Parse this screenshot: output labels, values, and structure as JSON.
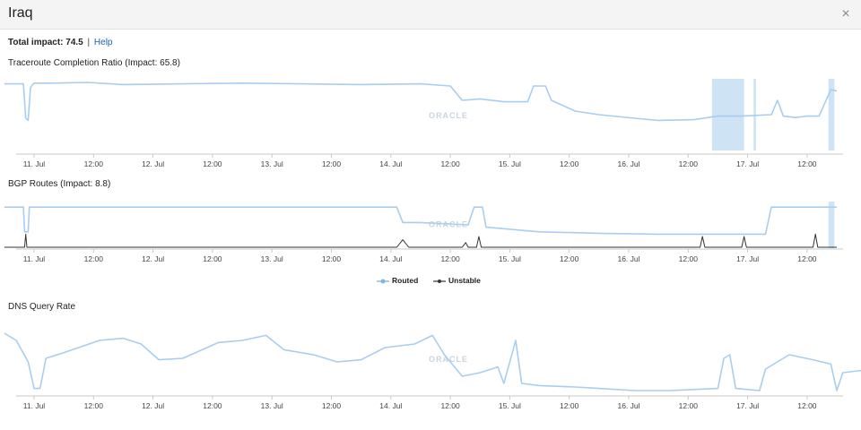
{
  "window": {
    "title": "Iraq",
    "close_glyph": "×"
  },
  "summary": {
    "impact_label": "Total impact: 74.5",
    "separator": "|",
    "help_label": "Help"
  },
  "colors": {
    "routed": "#a9cdef",
    "unstable": "#333333",
    "shade": "#c6def2",
    "axis": "#c8c8c8"
  },
  "icons": {
    "close": "close-icon"
  },
  "watermark": "ORACLE",
  "x_ticks": [
    "11. Jul",
    "12:00",
    "12. Jul",
    "12:00",
    "13. Jul",
    "12:00",
    "14. Jul",
    "12:00",
    "15. Jul",
    "12:00",
    "16. Jul",
    "12:00",
    "17. Jul",
    "12:00"
  ],
  "legend": {
    "routed_label": "Routed",
    "unstable_label": "Unstable"
  },
  "chart_data": [
    {
      "type": "line",
      "title": "Traceroute Completion Ratio (Impact: 65.8)",
      "x_start": "10. Jul 18:00",
      "x_end": "17. Jul 18:00",
      "categories_days": [
        0,
        0.25,
        0.5,
        0.75,
        1.0,
        1.25,
        1.5,
        1.75,
        2.0,
        2.25,
        2.5,
        2.75,
        3.0,
        3.25,
        3.5,
        3.75,
        4.0,
        4.25,
        4.5,
        4.75,
        5.0,
        5.25,
        5.5,
        5.75,
        6.0,
        6.25,
        6.5,
        6.75,
        7.0
      ],
      "series": [
        {
          "points": [
            [
              0,
              0.93
            ],
            [
              0.12,
              0.93
            ],
            [
              0.16,
              0.93
            ],
            [
              0.18,
              0.45
            ],
            [
              0.2,
              0.42
            ],
            [
              0.22,
              0.88
            ],
            [
              0.25,
              0.94
            ],
            [
              0.4,
              0.94
            ],
            [
              0.7,
              0.95
            ],
            [
              1.0,
              0.92
            ],
            [
              1.5,
              0.93
            ],
            [
              2.0,
              0.94
            ],
            [
              2.5,
              0.93
            ],
            [
              3.0,
              0.92
            ],
            [
              3.5,
              0.93
            ],
            [
              3.75,
              0.9
            ],
            [
              3.85,
              0.7
            ],
            [
              4.0,
              0.72
            ],
            [
              4.2,
              0.68
            ],
            [
              4.4,
              0.68
            ],
            [
              4.45,
              0.9
            ],
            [
              4.55,
              0.9
            ],
            [
              4.6,
              0.7
            ],
            [
              4.8,
              0.55
            ],
            [
              5.0,
              0.5
            ],
            [
              5.3,
              0.45
            ],
            [
              5.5,
              0.42
            ],
            [
              5.8,
              0.43
            ],
            [
              6.0,
              0.48
            ],
            [
              6.2,
              0.48
            ],
            [
              6.45,
              0.5
            ],
            [
              6.5,
              0.7
            ],
            [
              6.55,
              0.48
            ],
            [
              6.65,
              0.46
            ],
            [
              6.75,
              0.48
            ],
            [
              6.85,
              0.48
            ],
            [
              6.95,
              0.85
            ],
            [
              7.0,
              0.83
            ]
          ]
        }
      ],
      "shaded_ranges": [
        [
          5.95,
          6.22
        ],
        [
          6.3,
          6.32
        ],
        [
          6.93,
          6.98
        ]
      ]
    },
    {
      "type": "line",
      "title": "BGP Routes (Impact: 8.8)",
      "series": [
        {
          "name": "Routed",
          "points": [
            [
              0,
              0.88
            ],
            [
              0.16,
              0.88
            ],
            [
              0.17,
              0.35
            ],
            [
              0.2,
              0.35
            ],
            [
              0.21,
              0.88
            ],
            [
              3.3,
              0.88
            ],
            [
              3.35,
              0.55
            ],
            [
              3.5,
              0.55
            ],
            [
              3.9,
              0.5
            ],
            [
              3.95,
              0.88
            ],
            [
              4.02,
              0.88
            ],
            [
              4.05,
              0.45
            ],
            [
              4.5,
              0.35
            ],
            [
              5.0,
              0.32
            ],
            [
              5.5,
              0.3
            ],
            [
              6.0,
              0.3
            ],
            [
              6.4,
              0.3
            ],
            [
              6.45,
              0.88
            ],
            [
              7.0,
              0.88
            ]
          ]
        },
        {
          "name": "Unstable",
          "points": [
            [
              0,
              0.02
            ],
            [
              0.17,
              0.02
            ],
            [
              0.18,
              0.3
            ],
            [
              0.19,
              0.02
            ],
            [
              3.3,
              0.02
            ],
            [
              3.35,
              0.18
            ],
            [
              3.4,
              0.02
            ],
            [
              3.85,
              0.02
            ],
            [
              3.88,
              0.12
            ],
            [
              3.9,
              0.02
            ],
            [
              3.97,
              0.02
            ],
            [
              3.99,
              0.25
            ],
            [
              4.01,
              0.02
            ],
            [
              5.85,
              0.02
            ],
            [
              5.87,
              0.25
            ],
            [
              5.89,
              0.02
            ],
            [
              6.2,
              0.02
            ],
            [
              6.22,
              0.25
            ],
            [
              6.24,
              0.02
            ],
            [
              6.8,
              0.02
            ],
            [
              6.82,
              0.3
            ],
            [
              6.84,
              0.02
            ],
            [
              7.0,
              0.02
            ]
          ]
        }
      ],
      "shaded_ranges": [
        [
          6.93,
          6.98
        ]
      ]
    },
    {
      "type": "line",
      "title": "DNS Query Rate",
      "series": [
        {
          "points": [
            [
              0,
              0.85
            ],
            [
              0.1,
              0.75
            ],
            [
              0.2,
              0.45
            ],
            [
              0.25,
              0.08
            ],
            [
              0.3,
              0.08
            ],
            [
              0.35,
              0.5
            ],
            [
              0.5,
              0.58
            ],
            [
              0.8,
              0.75
            ],
            [
              1.0,
              0.78
            ],
            [
              1.15,
              0.7
            ],
            [
              1.3,
              0.48
            ],
            [
              1.5,
              0.5
            ],
            [
              1.8,
              0.72
            ],
            [
              2.0,
              0.75
            ],
            [
              2.2,
              0.82
            ],
            [
              2.35,
              0.62
            ],
            [
              2.6,
              0.55
            ],
            [
              2.8,
              0.45
            ],
            [
              3.0,
              0.48
            ],
            [
              3.2,
              0.65
            ],
            [
              3.45,
              0.7
            ],
            [
              3.6,
              0.82
            ],
            [
              3.7,
              0.55
            ],
            [
              3.8,
              0.35
            ],
            [
              3.85,
              0.25
            ],
            [
              4.0,
              0.3
            ],
            [
              4.15,
              0.38
            ],
            [
              4.2,
              0.15
            ],
            [
              4.3,
              0.75
            ],
            [
              4.35,
              0.15
            ],
            [
              4.5,
              0.12
            ],
            [
              4.8,
              0.1
            ],
            [
              5.0,
              0.08
            ],
            [
              5.3,
              0.05
            ],
            [
              5.6,
              0.05
            ],
            [
              6.0,
              0.08
            ],
            [
              6.05,
              0.5
            ],
            [
              6.1,
              0.55
            ],
            [
              6.15,
              0.08
            ],
            [
              6.35,
              0.05
            ],
            [
              6.4,
              0.35
            ],
            [
              6.6,
              0.55
            ],
            [
              6.8,
              0.48
            ],
            [
              6.95,
              0.42
            ],
            [
              7.0,
              0.05
            ],
            [
              7.05,
              0.3
            ],
            [
              7.3,
              0.35
            ]
          ]
        }
      ]
    }
  ]
}
